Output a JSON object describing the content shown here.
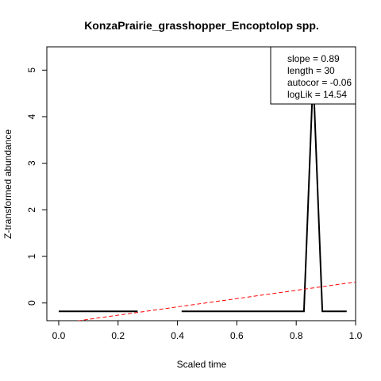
{
  "chart_data": {
    "type": "line",
    "title": "KonzaPrairie_grasshopper_Encoptolop spp.",
    "xlabel": "Scaled time",
    "ylabel": "Z-transformed abundance",
    "xlim": [
      -0.04,
      1.0
    ],
    "ylim": [
      -0.38,
      5.5
    ],
    "xticks": [
      0.0,
      0.2,
      0.4,
      0.6,
      0.8,
      1.0
    ],
    "xtick_labels": [
      "0.0",
      "0.2",
      "0.4",
      "0.6",
      "0.8",
      "1.0"
    ],
    "yticks": [
      0,
      1,
      2,
      3,
      4,
      5
    ],
    "ytick_labels": [
      "0",
      "1",
      "2",
      "3",
      "4",
      "5"
    ],
    "grid": false,
    "series": [
      {
        "style": "solid",
        "color": "#000000",
        "segments": [
          [
            [
              0.0,
              -0.18
            ],
            [
              0.266,
              -0.18
            ]
          ],
          [
            [
              0.414,
              -0.18
            ],
            [
              0.826,
              -0.18
            ],
            [
              0.857,
              4.9
            ],
            [
              0.888,
              -0.18
            ],
            [
              0.97,
              -0.18
            ]
          ]
        ]
      },
      {
        "style": "dashed",
        "color": "#ff0000",
        "line": [
          [
            0.0,
            -0.44
          ],
          [
            1.0,
            0.45
          ]
        ]
      }
    ],
    "legend": {
      "placement": "top-right",
      "entries": [
        "slope = 0.89",
        "length = 30",
        "autocor = -0.06",
        "logLik = 14.54"
      ]
    }
  }
}
